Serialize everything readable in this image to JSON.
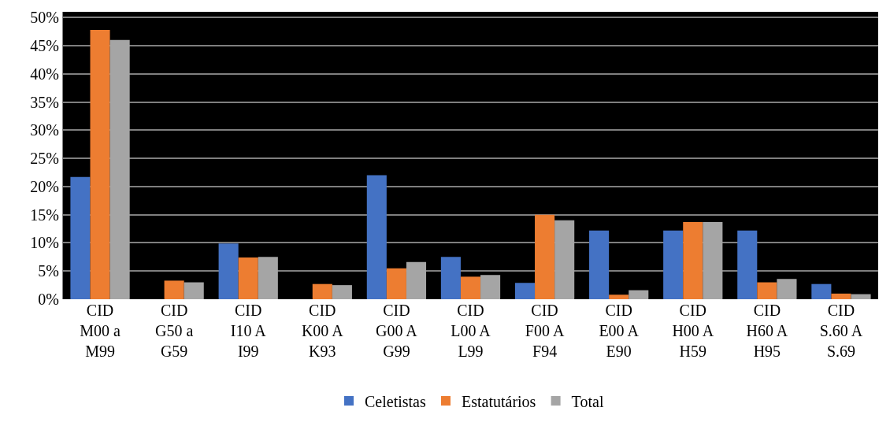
{
  "chart_data": {
    "type": "bar",
    "categories": [
      "CID M00 a M99",
      "CID G50 a G59",
      "CID I10 A I99",
      "CID K00 A K93",
      "CID G00 A G99",
      "CID L00 A L99",
      "CID F00 A F94",
      "CID E00 A E90",
      "CID H00 A H59",
      "CID H60 A H95",
      "CID S.60 A S.69"
    ],
    "series": [
      {
        "name": "Celetistas",
        "color": "#4472c4",
        "values": [
          21.7,
          0,
          9.9,
          0,
          22,
          7.5,
          2.9,
          12.2,
          12.2,
          12.2,
          2.7
        ]
      },
      {
        "name": "Estatutários",
        "color": "#ed7d31",
        "values": [
          47.8,
          3.3,
          7.4,
          2.7,
          5.5,
          4,
          15,
          0.8,
          13.7,
          3,
          1
        ]
      },
      {
        "name": "Total",
        "color": "#a5a5a5",
        "values": [
          46,
          3,
          7.5,
          2.5,
          6.6,
          4.3,
          14,
          1.6,
          13.7,
          3.6,
          0.9
        ]
      }
    ],
    "ylim": [
      0,
      51
    ],
    "yticks": [
      {
        "value": 0,
        "label": "0%"
      },
      {
        "value": 5,
        "label": "5%"
      },
      {
        "value": 10,
        "label": "10%"
      },
      {
        "value": 15,
        "label": "15%"
      },
      {
        "value": 20,
        "label": "20%"
      },
      {
        "value": 25,
        "label": "25%"
      },
      {
        "value": 30,
        "label": "30%"
      },
      {
        "value": 35,
        "label": "35%"
      },
      {
        "value": 40,
        "label": "40%"
      },
      {
        "value": 45,
        "label": "45%"
      },
      {
        "value": 50,
        "label": "50%"
      }
    ],
    "grid": "y",
    "legend": "bottom"
  }
}
